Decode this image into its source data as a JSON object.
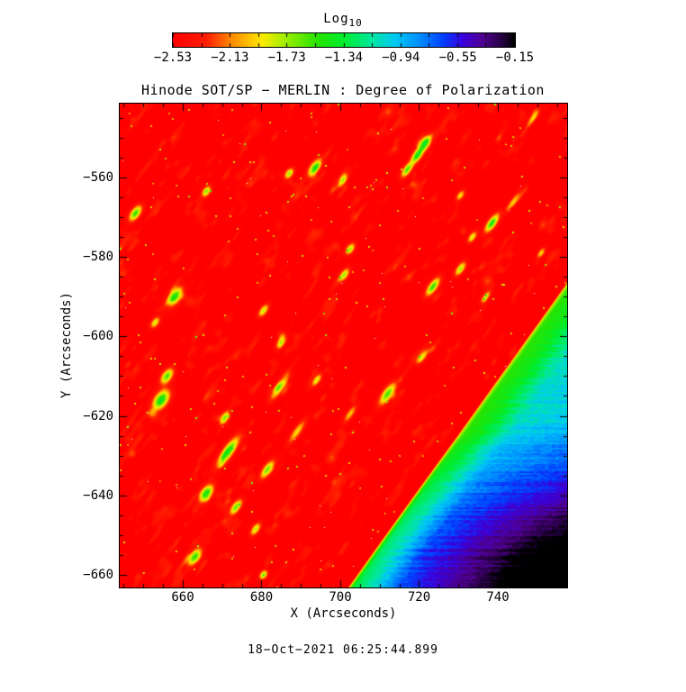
{
  "page": {
    "background": "#ffffff"
  },
  "chart_data": {
    "type": "heatmap",
    "title": "Hinode SOT/SP − MERLIN : Degree of Polarization",
    "timestamp": "18−Oct−2021 06:25:44.899",
    "colorbar": {
      "title_base": "Log",
      "title_sub": "10",
      "tick_labels": [
        "−2.53",
        "−2.13",
        "−1.73",
        "−1.34",
        "−0.94",
        "−0.55",
        "−0.15"
      ],
      "vmin": -2.53,
      "vmax": -0.15,
      "n_edge_ticks": 13,
      "stops": [
        [
          0.0,
          "#ff0000"
        ],
        [
          0.1,
          "#ff2000"
        ],
        [
          0.17,
          "#ff8a00"
        ],
        [
          0.26,
          "#ffea00"
        ],
        [
          0.33,
          "#9cf000"
        ],
        [
          0.42,
          "#2ae400"
        ],
        [
          0.5,
          "#00ee2e"
        ],
        [
          0.58,
          "#00e89e"
        ],
        [
          0.65,
          "#00caf4"
        ],
        [
          0.72,
          "#0090ff"
        ],
        [
          0.79,
          "#0040ff"
        ],
        [
          0.85,
          "#3c00dc"
        ],
        [
          0.91,
          "#50008c"
        ],
        [
          0.96,
          "#2a0048"
        ],
        [
          1.0,
          "#000000"
        ]
      ]
    },
    "x_axis": {
      "label": "X (Arcseconds)",
      "range": [
        644.0,
        757.6
      ],
      "major_ticks": [
        660,
        680,
        700,
        720,
        740
      ],
      "minor_step": 5
    },
    "y_axis": {
      "label": "Y (Arcseconds)",
      "range": [
        -663.2,
        -541.4
      ],
      "major_ticks": [
        -560,
        -580,
        -600,
        -620,
        -640,
        -660
      ],
      "minor_step": 5
    },
    "disk": {
      "base_log10": -2.53,
      "base_color": "#ff0000",
      "features_note": "elongated bright (log10 ~ -1.4) magnetic patches aligned parallel to the limb",
      "features_format": [
        "x_arcsec",
        "y_arcsec",
        "half_len_arcsec",
        "half_wid_arcsec",
        "log10_boost"
      ],
      "features": [
        [
          721.5,
          -551.5,
          2.2,
          1.1,
          1.1
        ],
        [
          719.5,
          -554.5,
          2.0,
          1.0,
          1.05
        ],
        [
          717.0,
          -558.0,
          2.2,
          0.9,
          0.95
        ],
        [
          693.5,
          -557.5,
          2.4,
          1.1,
          1.0
        ],
        [
          687.0,
          -559.0,
          1.5,
          0.9,
          0.8
        ],
        [
          666.0,
          -563.5,
          1.5,
          0.9,
          0.85
        ],
        [
          648.0,
          -569.0,
          2.2,
          1.1,
          1.0
        ],
        [
          700.5,
          -561.0,
          1.8,
          0.8,
          0.7
        ],
        [
          738.5,
          -571.5,
          2.6,
          1.0,
          1.05
        ],
        [
          744.0,
          -566.0,
          3.0,
          0.7,
          0.55
        ],
        [
          730.5,
          -564.5,
          1.5,
          0.8,
          0.6
        ],
        [
          733.5,
          -575.0,
          1.6,
          0.8,
          0.7
        ],
        [
          749.0,
          -545.0,
          2.2,
          0.7,
          0.55
        ],
        [
          702.5,
          -578.0,
          1.6,
          0.9,
          0.8
        ],
        [
          701.0,
          -584.5,
          1.8,
          0.9,
          0.8
        ],
        [
          730.5,
          -583.0,
          2.0,
          0.9,
          0.8
        ],
        [
          723.5,
          -587.5,
          2.6,
          1.0,
          1.0
        ],
        [
          658.0,
          -590.0,
          2.6,
          1.4,
          1.0
        ],
        [
          680.5,
          -593.5,
          1.8,
          0.9,
          0.75
        ],
        [
          653.0,
          -596.5,
          1.6,
          0.9,
          0.7
        ],
        [
          685.0,
          -601.5,
          1.8,
          0.9,
          0.7
        ],
        [
          712.0,
          -614.5,
          3.2,
          1.2,
          0.95
        ],
        [
          656.0,
          -610.0,
          2.2,
          1.2,
          0.95
        ],
        [
          654.5,
          -616.0,
          2.8,
          1.6,
          1.15
        ],
        [
          684.5,
          -613.0,
          3.5,
          1.0,
          0.75
        ],
        [
          694.0,
          -611.0,
          1.8,
          0.8,
          0.7
        ],
        [
          670.5,
          -620.8,
          1.6,
          0.9,
          0.8
        ],
        [
          671.5,
          -629.0,
          4.2,
          1.2,
          1.1
        ],
        [
          681.5,
          -633.5,
          2.6,
          1.0,
          0.9
        ],
        [
          666.0,
          -639.5,
          2.4,
          1.3,
          1.1
        ],
        [
          673.5,
          -643.0,
          2.2,
          1.0,
          0.9
        ],
        [
          663.0,
          -655.5,
          2.4,
          1.2,
          1.0
        ],
        [
          678.5,
          -648.5,
          1.8,
          0.9,
          0.75
        ],
        [
          680.5,
          -660.0,
          1.2,
          0.8,
          0.9
        ],
        [
          689.0,
          -624.0,
          3.5,
          0.9,
          0.6
        ],
        [
          702.5,
          -619.5,
          2.5,
          0.8,
          0.55
        ],
        [
          721.0,
          -605.0,
          2.0,
          0.8,
          0.6
        ],
        [
          737.0,
          -590.0,
          1.8,
          0.7,
          0.65
        ],
        [
          751.0,
          -579.0,
          1.5,
          0.7,
          0.6
        ]
      ]
    },
    "solar_limb": {
      "edge_from_xy": [
        757.6,
        -587.2
      ],
      "edge_to_xy": [
        702.7,
        -663.2
      ],
      "description": "sharp limb running from right edge down to bottom; thin yellow-green bright rim (log10 ~ -1.5) just off the red disk"
    },
    "off_limb": {
      "note": "sky beyond limb: green rim -> teal -> cyan, darkening to blue then purple/black toward bottom-right corner, with horizontal band noise",
      "profile_s_log10": [
        [
          0,
          -1.75
        ],
        [
          0.8,
          -1.52
        ],
        [
          4,
          -1.42
        ],
        [
          10,
          -1.08
        ],
        [
          26,
          -0.93
        ],
        [
          48,
          -0.6
        ],
        [
          70,
          -0.36
        ]
      ],
      "dark_corner_xy": [
        757.6,
        -663.2
      ],
      "corner_reach_arcsec": 52,
      "corner_log10": -0.15
    }
  }
}
